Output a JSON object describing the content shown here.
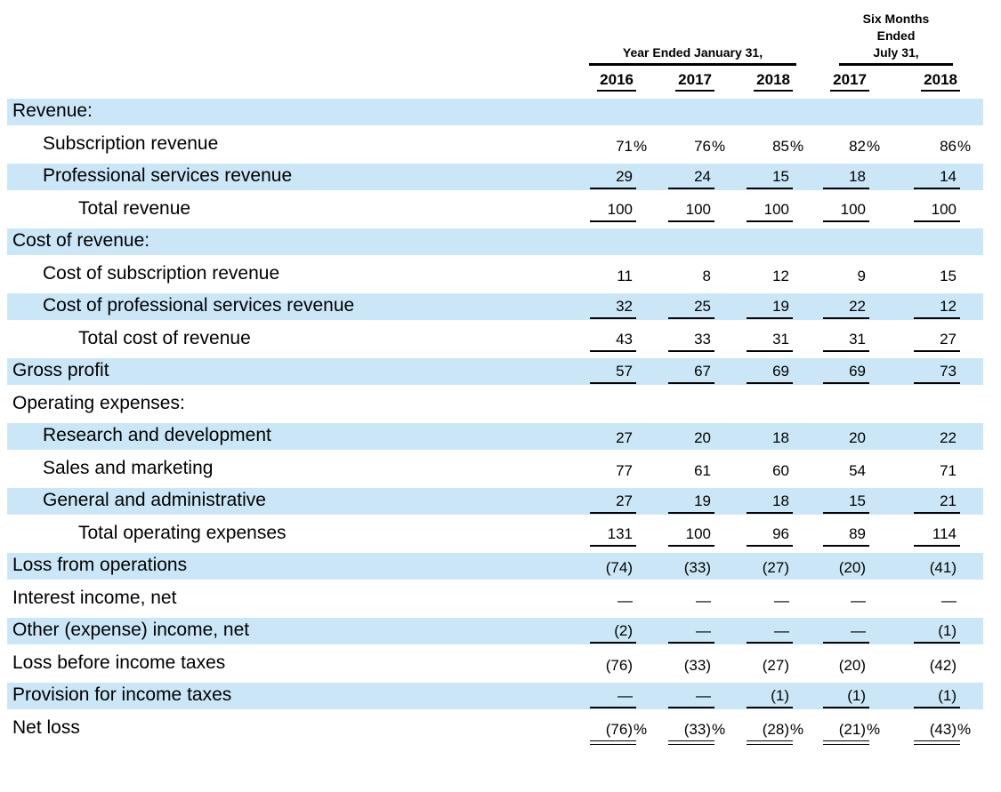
{
  "colors": {
    "highlight": "#cbe7f7",
    "text": "#000000",
    "rule": "#000000"
  },
  "table": {
    "header": {
      "group1_title": "Year Ended January 31,",
      "group2_lines": [
        "Six Months",
        "Ended",
        "July 31,"
      ],
      "years": [
        "2016",
        "2017",
        "2018",
        "2017",
        "2018"
      ]
    },
    "rows": [
      {
        "label": "Revenue:",
        "indent": 0,
        "highlight": true,
        "rule": "none",
        "values": [
          "",
          "",
          "",
          "",
          ""
        ]
      },
      {
        "label": "Subscription revenue",
        "indent": 1,
        "highlight": false,
        "rule": "none",
        "values": [
          {
            "v": "71",
            "s": "%"
          },
          {
            "v": "76",
            "s": "%"
          },
          {
            "v": "85",
            "s": "%"
          },
          {
            "v": "82",
            "s": "%"
          },
          {
            "v": "86",
            "s": "%"
          }
        ]
      },
      {
        "label": "Professional services revenue",
        "indent": 1,
        "highlight": true,
        "rule": "single",
        "values": [
          "29",
          "24",
          "15",
          "18",
          "14"
        ]
      },
      {
        "label": "Total revenue",
        "indent": 2,
        "highlight": false,
        "rule": "single",
        "values": [
          "100",
          "100",
          "100",
          "100",
          "100"
        ]
      },
      {
        "label": "Cost of revenue:",
        "indent": 0,
        "highlight": true,
        "rule": "none",
        "values": [
          "",
          "",
          "",
          "",
          ""
        ]
      },
      {
        "label": "Cost of subscription revenue",
        "indent": 1,
        "highlight": false,
        "rule": "none",
        "values": [
          "11",
          "8",
          "12",
          "9",
          "15"
        ]
      },
      {
        "label": "Cost of professional services revenue",
        "indent": 1,
        "highlight": true,
        "rule": "single",
        "values": [
          "32",
          "25",
          "19",
          "22",
          "12"
        ]
      },
      {
        "label": "Total cost of revenue",
        "indent": 2,
        "highlight": false,
        "rule": "single",
        "values": [
          "43",
          "33",
          "31",
          "31",
          "27"
        ]
      },
      {
        "label": "Gross profit",
        "indent": 0,
        "highlight": true,
        "rule": "single",
        "values": [
          "57",
          "67",
          "69",
          "69",
          "73"
        ]
      },
      {
        "label": "Operating expenses:",
        "indent": 0,
        "highlight": false,
        "rule": "none",
        "values": [
          "",
          "",
          "",
          "",
          ""
        ]
      },
      {
        "label": "Research and development",
        "indent": 1,
        "highlight": true,
        "rule": "none",
        "values": [
          "27",
          "20",
          "18",
          "20",
          "22"
        ]
      },
      {
        "label": "Sales and marketing",
        "indent": 1,
        "highlight": false,
        "rule": "none",
        "values": [
          "77",
          "61",
          "60",
          "54",
          "71"
        ]
      },
      {
        "label": "General and administrative",
        "indent": 1,
        "highlight": true,
        "rule": "single",
        "values": [
          "27",
          "19",
          "18",
          "15",
          "21"
        ]
      },
      {
        "label": "Total operating expenses",
        "indent": 2,
        "highlight": false,
        "rule": "single",
        "values": [
          "131",
          "100",
          "96",
          "89",
          "114"
        ]
      },
      {
        "label": "Loss from operations",
        "indent": 0,
        "highlight": true,
        "rule": "none",
        "values": [
          "(74)",
          "(33)",
          "(27)",
          "(20)",
          "(41)"
        ]
      },
      {
        "label": "Interest income, net",
        "indent": 0,
        "highlight": false,
        "rule": "none",
        "values": [
          "—",
          "—",
          "—",
          "—",
          "—"
        ]
      },
      {
        "label": "Other (expense) income, net",
        "indent": 0,
        "highlight": true,
        "rule": "single",
        "values": [
          "(2)",
          "—",
          "—",
          "—",
          "(1)"
        ]
      },
      {
        "label": "Loss before income taxes",
        "indent": 0,
        "highlight": false,
        "rule": "none",
        "values": [
          "(76)",
          "(33)",
          "(27)",
          "(20)",
          "(42)"
        ]
      },
      {
        "label": "Provision for income taxes",
        "indent": 0,
        "highlight": true,
        "rule": "single",
        "values": [
          "—",
          "—",
          "(1)",
          "(1)",
          "(1)"
        ]
      },
      {
        "label": "Net loss",
        "indent": 0,
        "highlight": false,
        "rule": "double",
        "values": [
          {
            "v": "(76)",
            "s": "%"
          },
          {
            "v": "(33)",
            "s": "%"
          },
          {
            "v": "(28)",
            "s": "%"
          },
          {
            "v": "(21)",
            "s": "%"
          },
          {
            "v": "(43)",
            "s": "%"
          }
        ]
      }
    ]
  }
}
